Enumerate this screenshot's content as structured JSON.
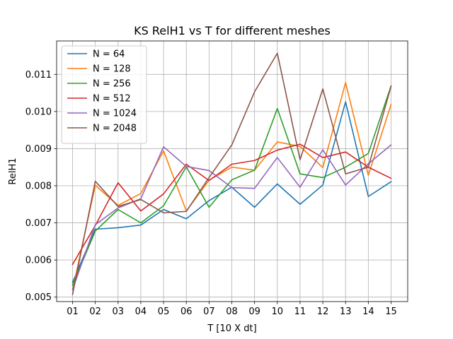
{
  "chart_data": {
    "type": "line",
    "title": "KS RelH1 vs T for different meshes",
    "xlabel": "T [10 X dt]",
    "ylabel": "RelH1",
    "categories": [
      "01",
      "02",
      "03",
      "04",
      "05",
      "06",
      "07",
      "08",
      "09",
      "10",
      "11",
      "12",
      "13",
      "14",
      "15"
    ],
    "ylim": [
      0.00488,
      0.0119
    ],
    "yticks": [
      0.005,
      0.006,
      0.007,
      0.008,
      0.009,
      0.01,
      0.011
    ],
    "ytick_labels": [
      "0.005",
      "0.006",
      "0.007",
      "0.008",
      "0.009",
      "0.010",
      "0.011"
    ],
    "grid": true,
    "legend_position": "top-left",
    "series": [
      {
        "name": "N = 64",
        "color": "#1f77b4",
        "values": [
          0.0054,
          0.00683,
          0.00687,
          0.00694,
          0.00736,
          0.00711,
          0.0076,
          0.00796,
          0.00742,
          0.00805,
          0.0075,
          0.00802,
          0.01026,
          0.00771,
          0.00811
        ]
      },
      {
        "name": "N = 128",
        "color": "#ff7f0e",
        "values": [
          0.0052,
          0.00801,
          0.00747,
          0.00779,
          0.00894,
          0.00732,
          0.00815,
          0.0085,
          0.00842,
          0.00918,
          0.00906,
          0.00849,
          0.01078,
          0.00828,
          0.01019
        ]
      },
      {
        "name": "N = 256",
        "color": "#2ca02c",
        "values": [
          0.00532,
          0.00678,
          0.00736,
          0.007,
          0.00746,
          0.00851,
          0.00742,
          0.00816,
          0.00842,
          0.01008,
          0.00832,
          0.00822,
          0.0085,
          0.00887,
          0.01069
        ]
      },
      {
        "name": "N = 512",
        "color": "#d62728",
        "values": [
          0.00588,
          0.00693,
          0.00808,
          0.00732,
          0.00778,
          0.00858,
          0.00814,
          0.00858,
          0.00868,
          0.00896,
          0.00912,
          0.00876,
          0.00891,
          0.0085,
          0.0082
        ]
      },
      {
        "name": "N = 1024",
        "color": "#9467bd",
        "values": [
          0.0052,
          0.00695,
          0.0074,
          0.00765,
          0.00905,
          0.00852,
          0.00841,
          0.00795,
          0.00793,
          0.00876,
          0.00796,
          0.00897,
          0.00802,
          0.00859,
          0.0091
        ]
      },
      {
        "name": "N = 2048",
        "color": "#8c564b",
        "values": [
          0.00507,
          0.00812,
          0.00744,
          0.00763,
          0.00727,
          0.00731,
          0.00822,
          0.0091,
          0.01053,
          0.01157,
          0.0087,
          0.01061,
          0.00832,
          0.0085,
          0.01068
        ]
      }
    ]
  }
}
